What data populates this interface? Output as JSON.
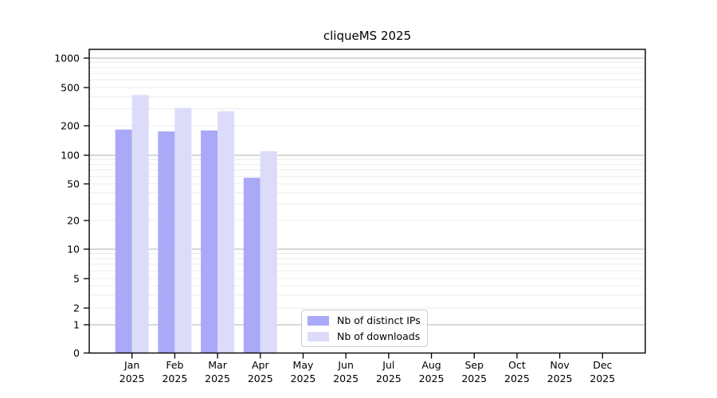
{
  "title": "cliqueMS 2025",
  "chart_data": {
    "type": "bar",
    "title": "cliqueMS 2025",
    "x_categories": [
      {
        "month": "Jan",
        "year": "2025"
      },
      {
        "month": "Feb",
        "year": "2025"
      },
      {
        "month": "Mar",
        "year": "2025"
      },
      {
        "month": "Apr",
        "year": "2025"
      },
      {
        "month": "May",
        "year": "2025"
      },
      {
        "month": "Jun",
        "year": "2025"
      },
      {
        "month": "Jul",
        "year": "2025"
      },
      {
        "month": "Aug",
        "year": "2025"
      },
      {
        "month": "Sep",
        "year": "2025"
      },
      {
        "month": "Oct",
        "year": "2025"
      },
      {
        "month": "Nov",
        "year": "2025"
      },
      {
        "month": "Dec",
        "year": "2025"
      }
    ],
    "series": [
      {
        "name": "Nb of distinct IPs",
        "color": "#a9a9f7",
        "values": [
          183,
          175,
          179,
          58,
          null,
          null,
          null,
          null,
          null,
          null,
          null,
          null
        ]
      },
      {
        "name": "Nb of downloads",
        "color": "#dcdcfa",
        "values": [
          418,
          307,
          283,
          110,
          null,
          null,
          null,
          null,
          null,
          null,
          null,
          null
        ]
      }
    ],
    "y_axis": {
      "scale": "log-like",
      "ticks": [
        0,
        1,
        2,
        5,
        10,
        20,
        50,
        100,
        200,
        500,
        1000
      ],
      "ylim": [
        0,
        1230
      ],
      "grid_major": [
        1,
        10,
        100,
        1000
      ]
    },
    "grid": {
      "horizontal": true,
      "minor": true,
      "vertical": false
    },
    "legend_position": "inside lower-center of plot",
    "colors": {
      "major_gridline": "#c0c0c0",
      "minor_gridline": "#ececec",
      "axis": "#000000",
      "legend_border": "#cccccc"
    }
  }
}
